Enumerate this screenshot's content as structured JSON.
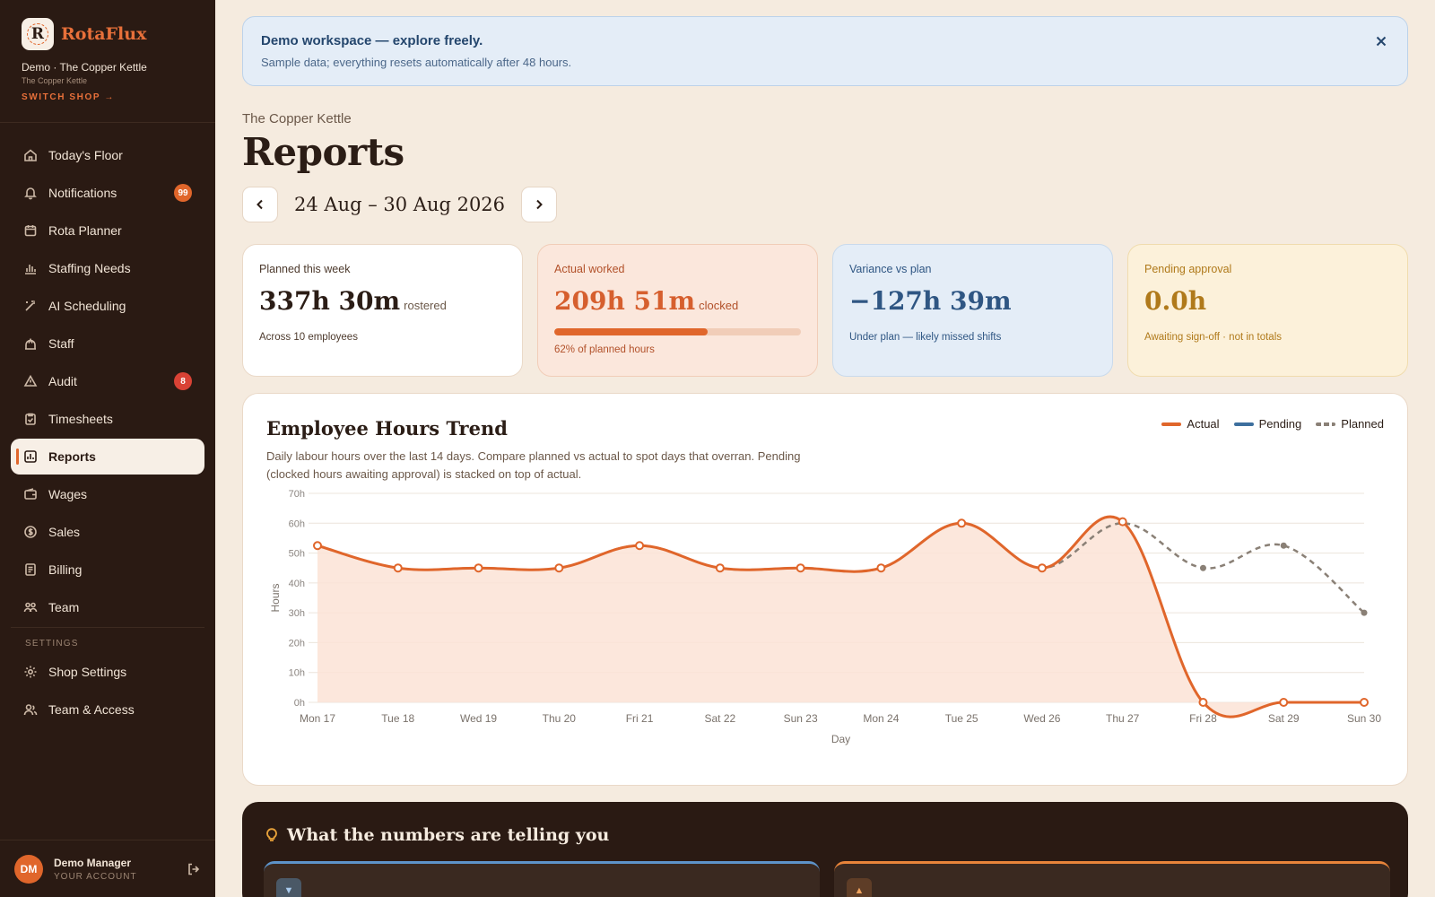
{
  "sidebar": {
    "brand": "RotaFlux",
    "logo_letter": "R",
    "shop_line": "Demo · The Copper Kettle",
    "shop_sub": "The Copper Kettle",
    "switch_shop": "SWITCH SHOP →",
    "items": [
      {
        "label": "Today's Floor",
        "icon": "home-icon"
      },
      {
        "label": "Notifications",
        "icon": "bell-icon",
        "badge": "99"
      },
      {
        "label": "Rota Planner",
        "icon": "calendar-icon"
      },
      {
        "label": "Staffing Needs",
        "icon": "bar-chart-icon"
      },
      {
        "label": "AI Scheduling",
        "icon": "wand-icon"
      },
      {
        "label": "Staff",
        "icon": "staff-icon"
      },
      {
        "label": "Audit",
        "icon": "warning-icon",
        "badge": "8"
      },
      {
        "label": "Timesheets",
        "icon": "clipboard-icon"
      },
      {
        "label": "Reports",
        "icon": "report-icon",
        "active": true
      },
      {
        "label": "Wages",
        "icon": "wallet-icon"
      },
      {
        "label": "Sales",
        "icon": "dollar-icon"
      },
      {
        "label": "Billing",
        "icon": "billing-icon"
      },
      {
        "label": "Team",
        "icon": "team-icon"
      }
    ],
    "settings_label": "SETTINGS",
    "settings_items": [
      {
        "label": "Shop Settings",
        "icon": "gear-icon"
      },
      {
        "label": "Team & Access",
        "icon": "users-icon"
      }
    ],
    "account": {
      "initials": "DM",
      "name": "Demo Manager",
      "sub": "YOUR ACCOUNT"
    }
  },
  "banner": {
    "title": "Demo workspace — explore freely.",
    "text": "Sample data; everything resets automatically after 48 hours."
  },
  "header": {
    "crumb": "The Copper Kettle",
    "title": "Reports",
    "week": "24 Aug – 30 Aug 2026"
  },
  "kpis": {
    "planned": {
      "label": "Planned this week",
      "value": "337h 30m",
      "unit": "rostered",
      "note": "Across 10 employees"
    },
    "actual": {
      "label": "Actual worked",
      "value": "209h 51m",
      "unit": "clocked",
      "note": "62% of planned hours",
      "progress": 0.62
    },
    "variance": {
      "label": "Variance vs plan",
      "value": "−127h 39m",
      "note": "Under plan — likely missed shifts"
    },
    "pending": {
      "label": "Pending approval",
      "value": "0.0h",
      "note": "Awaiting sign-off · not in totals"
    }
  },
  "chart": {
    "title": "Employee Hours Trend",
    "description": "Daily labour hours over the last 14 days. Compare planned vs actual to spot days that overran. Pending (clocked hours awaiting approval) is stacked on top of actual.",
    "legend": [
      "Actual",
      "Pending",
      "Planned"
    ]
  },
  "colors": {
    "actual": "#e0662b",
    "pending": "#3d6f9e",
    "planned": "#8a8076",
    "area": "#fbe3d6"
  },
  "chart_data": {
    "type": "line",
    "categories": [
      "Mon 17",
      "Tue 18",
      "Wed 19",
      "Thu 20",
      "Fri 21",
      "Sat 22",
      "Sun 23",
      "Mon 24",
      "Tue 25",
      "Wed 26",
      "Thu 27",
      "Fri 28",
      "Sat 29",
      "Sun 30"
    ],
    "series": [
      {
        "name": "Actual",
        "values": [
          52.5,
          45,
          45,
          45,
          52.5,
          45,
          45,
          45,
          60,
          45,
          60.5,
          0,
          0,
          0
        ]
      },
      {
        "name": "Pending",
        "values": [
          0,
          0,
          0,
          0,
          0,
          0,
          0,
          0,
          0,
          0,
          0,
          0,
          0,
          0
        ]
      },
      {
        "name": "Planned",
        "values": [
          52.5,
          45,
          45,
          45,
          52.5,
          45,
          45,
          45,
          60,
          45,
          60,
          45,
          52.5,
          30
        ]
      }
    ],
    "xlabel": "Day",
    "ylabel": "Hours",
    "ylim": [
      0,
      70
    ],
    "yticks": [
      "0h",
      "10h",
      "20h",
      "30h",
      "40h",
      "50h",
      "60h",
      "70h"
    ],
    "grid": true,
    "legend_position": "top-right"
  },
  "insights": {
    "title": "What the numbers are telling you",
    "cards": [
      {
        "chip": "▼"
      },
      {
        "chip": "▲"
      }
    ]
  }
}
